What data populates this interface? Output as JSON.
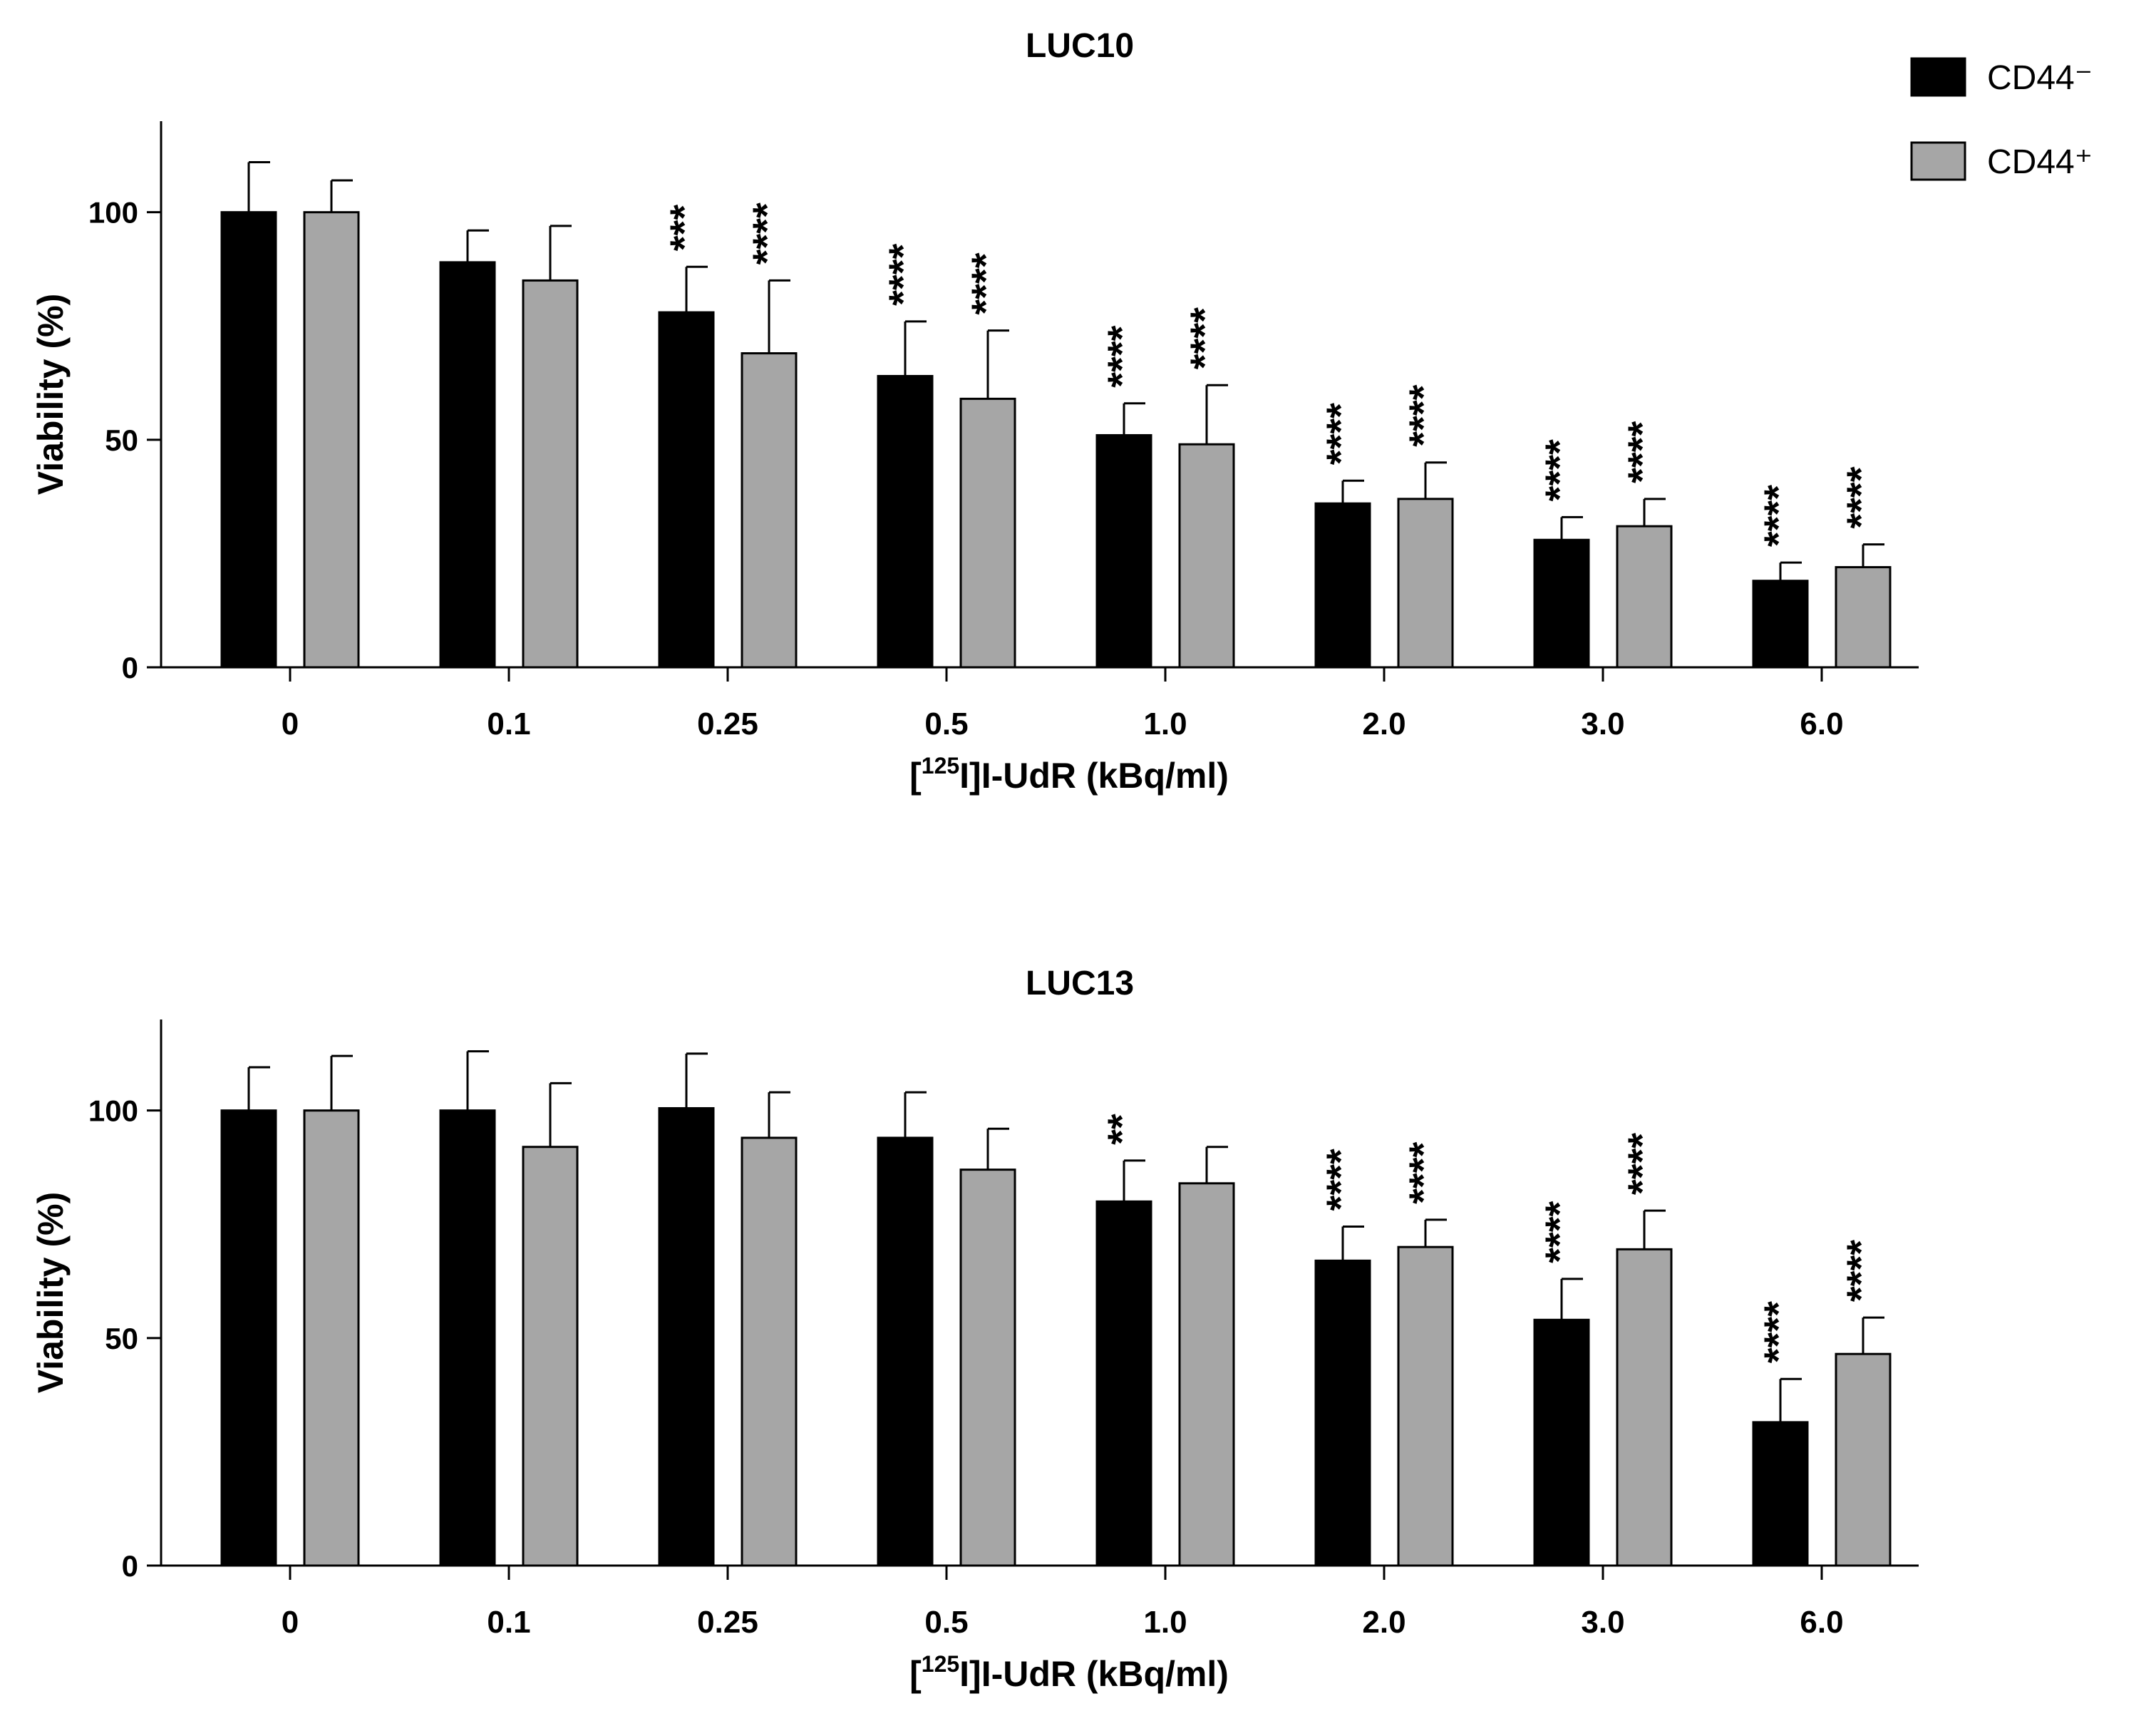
{
  "legend": {
    "items": [
      {
        "label": "CD44⁻",
        "color": "#000000"
      },
      {
        "label": "CD44⁺",
        "color": "#a6a6a6"
      }
    ]
  },
  "chart_data": [
    {
      "type": "bar",
      "title": "LUC10",
      "xlabel": "[125I]I-UdR (kBq/ml)",
      "xlabel_prefix": "[",
      "xlabel_superscript": "125",
      "xlabel_suffix": "I]I-UdR (kBq/ml)",
      "ylabel": "Viability (%)",
      "ylim": [
        0,
        120
      ],
      "yticks": [
        0,
        50,
        100
      ],
      "categories": [
        "0",
        "0.1",
        "0.25",
        "0.5",
        "1.0",
        "2.0",
        "3.0",
        "6.0"
      ],
      "series": [
        {
          "name": "CD44⁻",
          "color": "#000000",
          "values": [
            100,
            89,
            78,
            64,
            51,
            36,
            28,
            19
          ],
          "errors": [
            11,
            7,
            10,
            12,
            7,
            5,
            5,
            4
          ],
          "significance": [
            "",
            "",
            "***",
            "****",
            "****",
            "****",
            "****",
            "****"
          ]
        },
        {
          "name": "CD44⁺",
          "color": "#a6a6a6",
          "values": [
            100,
            85,
            69,
            59,
            49,
            37,
            31,
            22
          ],
          "errors": [
            7,
            12,
            16,
            15,
            13,
            8,
            6,
            5
          ],
          "significance": [
            "",
            "",
            "****",
            "****",
            "****",
            "****",
            "****",
            "****"
          ]
        }
      ]
    },
    {
      "type": "bar",
      "title": "LUC13",
      "xlabel": "[125I]I-UdR (kBq/ml)",
      "xlabel_prefix": "[",
      "xlabel_superscript": "125",
      "xlabel_suffix": "I]I-UdR (kBq/ml)",
      "ylabel": "Viability (%)",
      "ylim": [
        0,
        120
      ],
      "yticks": [
        0,
        50,
        100
      ],
      "categories": [
        "0",
        "0.1",
        "0.25",
        "0.5",
        "1.0",
        "2.0",
        "3.0",
        "6.0"
      ],
      "series": [
        {
          "name": "CD44⁻",
          "color": "#000000",
          "values": [
            100,
            100,
            100.5,
            94,
            80,
            67,
            54,
            31.5
          ],
          "errors": [
            9.5,
            13,
            12,
            10,
            9,
            7.5,
            9,
            9.5
          ],
          "significance": [
            "",
            "",
            "",
            "",
            "**",
            "****",
            "****",
            "****"
          ]
        },
        {
          "name": "CD44⁺",
          "color": "#a6a6a6",
          "values": [
            100,
            92,
            94,
            87,
            84,
            70,
            69.5,
            46.5
          ],
          "errors": [
            12,
            14,
            10,
            9,
            8,
            6,
            8.5,
            8
          ],
          "significance": [
            "",
            "",
            "",
            "",
            "",
            "****",
            "****",
            "****"
          ]
        }
      ]
    }
  ]
}
